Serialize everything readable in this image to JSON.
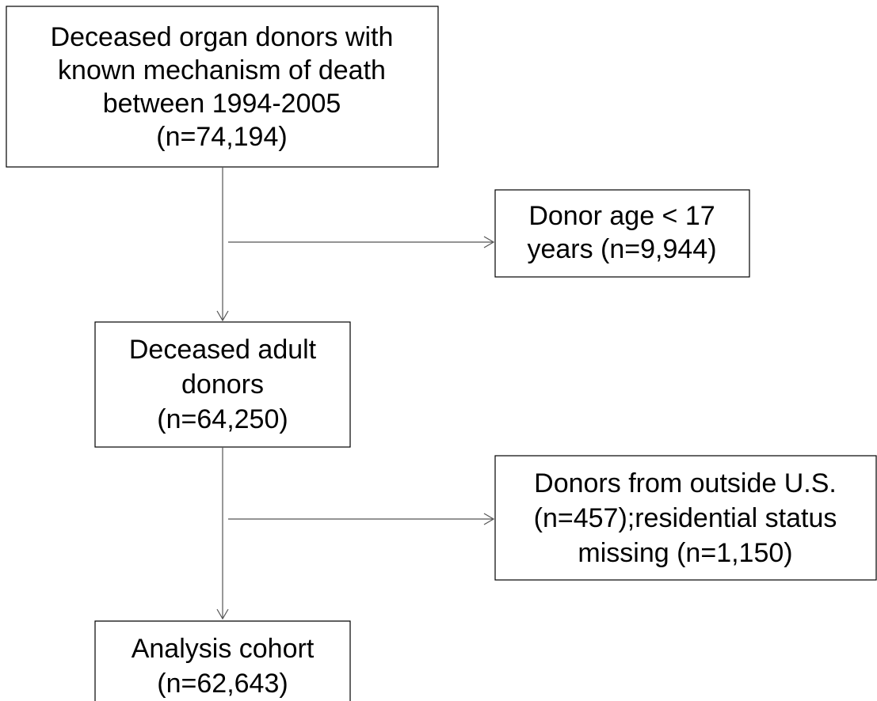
{
  "nodes": [
    {
      "label": [
        "Deceased organ donors with",
        "known mechanism of death",
        "between 1994-2005",
        "(n=74,194)"
      ]
    },
    {
      "label": [
        "Donor age < 17",
        "years (n=9,944)"
      ]
    },
    {
      "label": [
        "Deceased adult",
        "donors",
        "(n=64,250)"
      ]
    },
    {
      "label": [
        "Donors from outside U.S.",
        "(n=457);residential status",
        "missing (n=1,150)"
      ]
    },
    {
      "label": [
        "Analysis cohort",
        "(n=62,643)"
      ]
    }
  ]
}
